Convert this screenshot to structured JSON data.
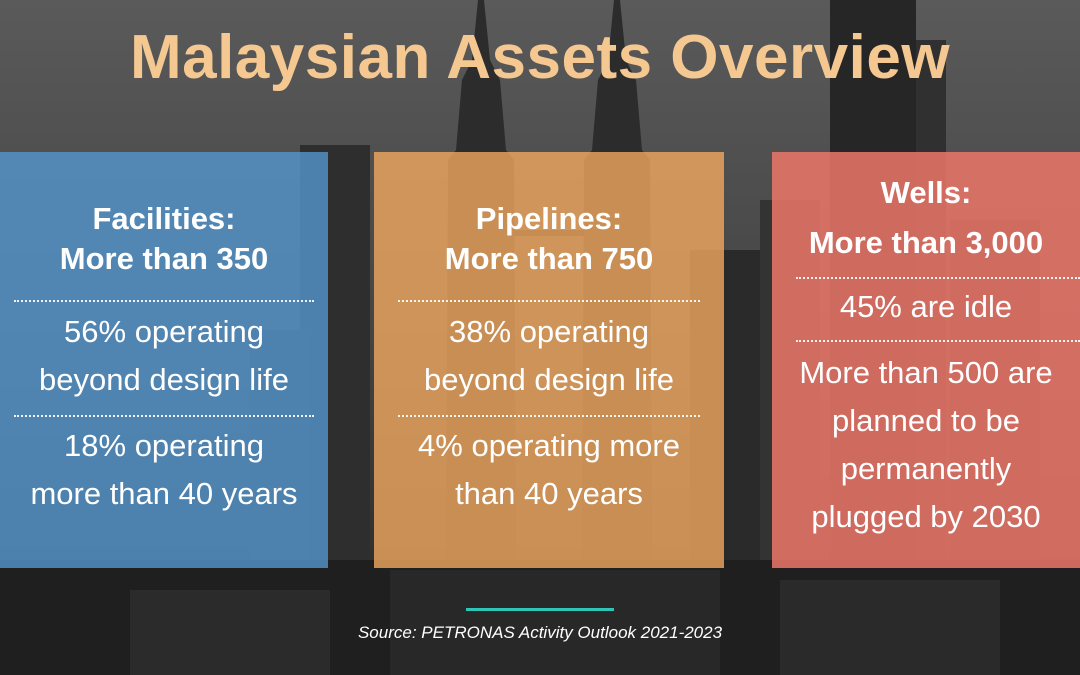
{
  "title": "Malaysian Assets Overview",
  "cards": [
    {
      "heading_line1": "Facilities:",
      "heading_line2": "More than 350",
      "stat1_line1": "56% operating",
      "stat1_line2": "beyond design life",
      "stat2_line1": "18% operating",
      "stat2_line2": "more than 40 years"
    },
    {
      "heading_line1": "Pipelines:",
      "heading_line2": "More than 750",
      "stat1_line1": "38% operating",
      "stat1_line2": "beyond design life",
      "stat2_line1": "4% operating more",
      "stat2_line2": "than 40 years"
    },
    {
      "heading_line1": "Wells:",
      "heading_line2": "More than 3,000",
      "stat1_line1": "45% are idle",
      "stat2_line1": "More than 500 are",
      "stat2_line2": "planned to be",
      "stat2_line3": "permanently",
      "stat2_line4": "plugged by 2030"
    }
  ],
  "source": "Source: PETRONAS Activity Outlook 2021-2023",
  "colors": {
    "title": "#f4c890",
    "facilities_card": "#5596cd",
    "pipelines_card": "#f0a85f",
    "wells_card": "#eb7669",
    "source_rule": "#2ec4b6"
  }
}
